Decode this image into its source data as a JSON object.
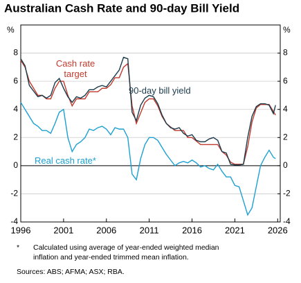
{
  "chart_data": {
    "type": "line",
    "title": "Australian Cash Rate and 90-day Bill Yield",
    "y_unit": "%",
    "y2_unit": "%",
    "x": [
      1996,
      1996.5,
      1997,
      1997.5,
      1998,
      1998.5,
      1999,
      1999.5,
      2000,
      2000.5,
      2001,
      2001.5,
      2002,
      2002.5,
      2003,
      2003.5,
      2004,
      2004.5,
      2005,
      2005.5,
      2006,
      2006.5,
      2007,
      2007.5,
      2008,
      2008.5,
      2009,
      2009.5,
      2010,
      2010.5,
      2011,
      2011.5,
      2012,
      2012.5,
      2013,
      2013.5,
      2014,
      2014.5,
      2015,
      2015.5,
      2016,
      2016.5,
      2017,
      2017.5,
      2018,
      2018.5,
      2019,
      2019.5,
      2020,
      2020.5,
      2021,
      2021.5,
      2022,
      2022.5,
      2023,
      2023.5,
      2024,
      2024.5,
      2025,
      2025.5,
      2025.75
    ],
    "xlim": [
      1996,
      2026.3
    ],
    "xticks": [
      1996,
      2001,
      2006,
      2011,
      2016,
      2021,
      2026
    ],
    "ylim": [
      -4,
      10
    ],
    "yticks": [
      -4,
      -2,
      0,
      2,
      4,
      6,
      8
    ],
    "y2lim": [
      -4,
      10
    ],
    "y2ticks": [
      -4,
      -2,
      0,
      2,
      4,
      6,
      8
    ],
    "grid": true,
    "series": [
      {
        "name": "Cash rate target",
        "color": "#c0392b",
        "values": [
          7.5,
          7.0,
          6.0,
          5.5,
          5.0,
          5.0,
          4.75,
          4.75,
          5.5,
          6.0,
          6.0,
          5.0,
          4.25,
          4.75,
          4.75,
          4.75,
          5.25,
          5.25,
          5.25,
          5.5,
          5.5,
          5.75,
          6.25,
          6.25,
          7.0,
          7.25,
          4.25,
          3.0,
          3.75,
          4.5,
          4.75,
          4.75,
          4.25,
          3.5,
          3.0,
          2.75,
          2.5,
          2.5,
          2.5,
          2.0,
          2.0,
          1.75,
          1.5,
          1.5,
          1.5,
          1.5,
          1.5,
          1.0,
          0.75,
          0.25,
          0.1,
          0.1,
          0.1,
          1.35,
          3.1,
          4.1,
          4.35,
          4.35,
          4.35,
          3.85,
          3.6
        ]
      },
      {
        "name": "90-day bill yield",
        "color": "#1b3a4b",
        "values": [
          7.6,
          7.1,
          5.7,
          5.3,
          4.9,
          5.0,
          4.8,
          5.0,
          5.9,
          6.2,
          5.5,
          4.9,
          4.5,
          4.9,
          4.8,
          5.0,
          5.4,
          5.4,
          5.6,
          5.7,
          5.6,
          6.0,
          6.4,
          6.8,
          7.7,
          7.6,
          3.8,
          3.2,
          4.3,
          4.8,
          5.0,
          4.9,
          4.4,
          3.6,
          3.0,
          2.7,
          2.6,
          2.7,
          2.3,
          2.1,
          2.2,
          1.8,
          1.7,
          1.7,
          1.9,
          2.0,
          1.8,
          1.0,
          0.9,
          0.1,
          0.05,
          0.05,
          0.1,
          2.0,
          3.5,
          4.2,
          4.4,
          4.4,
          4.3,
          3.7,
          4.3
        ]
      },
      {
        "name": "Real cash rate*",
        "color": "#1ba0d2",
        "values": [
          4.5,
          4.0,
          3.5,
          3.0,
          2.8,
          2.5,
          2.5,
          2.3,
          3.0,
          3.8,
          4.0,
          2.0,
          1.0,
          1.5,
          1.7,
          2.0,
          2.6,
          2.5,
          2.7,
          2.8,
          2.6,
          2.2,
          2.7,
          2.6,
          2.6,
          2.0,
          -0.6,
          -1.0,
          0.5,
          1.5,
          2.0,
          2.0,
          1.8,
          1.3,
          0.8,
          0.4,
          0.0,
          0.2,
          0.3,
          0.2,
          0.4,
          0.2,
          -0.1,
          0.0,
          -0.2,
          -0.3,
          0.1,
          -0.4,
          -0.8,
          -0.8,
          -1.4,
          -1.5,
          -2.5,
          -3.5,
          -3.0,
          -1.5,
          0.0,
          0.6,
          1.1,
          0.6,
          0.5
        ]
      }
    ],
    "footnote_marker": "*",
    "footnote": "Calculated using average of year-ended weighted median inflation and year-ended trimmed mean inflation.",
    "sources": "Sources: ABS; AFMA; ASX; RBA."
  }
}
